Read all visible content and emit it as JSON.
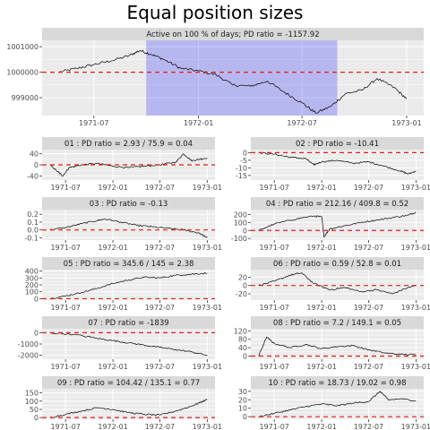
{
  "title": "Equal position sizes",
  "colors": {
    "panel_bg": "#ebebeb",
    "strip_bg": "#d9d9d9",
    "grid": "#ffffff",
    "line": "#000000",
    "reference": "#e41a1c",
    "highlight": "#0000ff"
  },
  "x_tick_labels": [
    "1971-07",
    "1972-01",
    "1972-07",
    "1973-01"
  ],
  "chart_data": [
    {
      "type": "line",
      "strip": "Active on 100 % of days; PD ratio =  -1157.92",
      "x_range": [
        "1971-04-01",
        "1973-01-31"
      ],
      "ylim": [
        998300,
        1001250
      ],
      "yticks": [
        999000,
        1000000,
        1001000
      ],
      "ytick_labels": [
        "999000",
        "1000000",
        "1001000"
      ],
      "reference_line": 1000000,
      "highlight": {
        "from": "1971-10-01",
        "to": "1972-09-01"
      },
      "series_points": [
        [
          "1971-05-01",
          1000000
        ],
        [
          "1971-06-01",
          1000150
        ],
        [
          "1971-07-01",
          1000300
        ],
        [
          "1971-08-01",
          1000450
        ],
        [
          "1971-09-01",
          1000650
        ],
        [
          "1971-09-20",
          1000850
        ],
        [
          "1971-10-10",
          1000700
        ],
        [
          "1971-11-01",
          1000500
        ],
        [
          "1971-12-01",
          1000150
        ],
        [
          "1972-01-01",
          1000050
        ],
        [
          "1972-02-01",
          999900
        ],
        [
          "1972-03-01",
          999500
        ],
        [
          "1972-04-01",
          999450
        ],
        [
          "1972-05-01",
          999650
        ],
        [
          "1972-06-01",
          999200
        ],
        [
          "1972-07-01",
          998800
        ],
        [
          "1972-07-25",
          998400
        ],
        [
          "1972-08-20",
          998650
        ],
        [
          "1972-09-15",
          999150
        ],
        [
          "1972-10-15",
          999300
        ],
        [
          "1972-11-10",
          999750
        ],
        [
          "1972-12-10",
          999400
        ],
        [
          "1973-01-01",
          998950
        ]
      ]
    },
    {
      "type": "line",
      "id": "01",
      "strip": "01 : PD ratio =  2.93 / 75.9 = 0.04",
      "ylim": [
        -55,
        55
      ],
      "yticks": [
        -40,
        0,
        40
      ],
      "ytick_labels": [
        "-40",
        "0",
        "40"
      ],
      "reference_line": 0,
      "series_points": [
        [
          "1971-05-01",
          0
        ],
        [
          "1971-06-01",
          -25
        ],
        [
          "1971-06-20",
          -40
        ],
        [
          "1971-07-15",
          -10
        ],
        [
          "1971-09-01",
          0
        ],
        [
          "1971-11-01",
          5
        ],
        [
          "1972-01-01",
          -5
        ],
        [
          "1972-03-01",
          -10
        ],
        [
          "1972-05-01",
          -5
        ],
        [
          "1972-07-01",
          0
        ],
        [
          "1972-09-01",
          10
        ],
        [
          "1972-10-01",
          40
        ],
        [
          "1972-11-01",
          15
        ],
        [
          "1972-12-01",
          20
        ],
        [
          "1973-01-01",
          25
        ]
      ]
    },
    {
      "type": "line",
      "id": "02",
      "strip": "02 : PD ratio =  -10.41",
      "ylim": [
        -18,
        2
      ],
      "yticks": [
        -15,
        -10,
        -5,
        0
      ],
      "ytick_labels": [
        "-15",
        "-10",
        "-5",
        "0"
      ],
      "reference_line": 0,
      "series_points": [
        [
          "1971-05-01",
          0
        ],
        [
          "1971-07-01",
          -1
        ],
        [
          "1971-09-01",
          -3
        ],
        [
          "1971-11-01",
          -4
        ],
        [
          "1971-12-01",
          -8
        ],
        [
          "1972-01-01",
          -6
        ],
        [
          "1972-03-01",
          -5
        ],
        [
          "1972-05-01",
          -7
        ],
        [
          "1972-07-01",
          -6
        ],
        [
          "1972-09-01",
          -9
        ],
        [
          "1972-11-01",
          -12
        ],
        [
          "1972-12-01",
          -14
        ],
        [
          "1973-01-01",
          -12
        ]
      ]
    },
    {
      "type": "line",
      "id": "03",
      "strip": "03 : PD ratio =  -0.13",
      "ylim": [
        -0.13,
        0.26
      ],
      "yticks": [
        -0.1,
        0.0,
        0.1,
        0.2
      ],
      "ytick_labels": [
        "-0.1",
        "0.0",
        "0.1",
        "0.2"
      ],
      "reference_line": 0,
      "series_points": [
        [
          "1971-05-01",
          0
        ],
        [
          "1971-07-01",
          0.03
        ],
        [
          "1971-09-01",
          0.08
        ],
        [
          "1971-11-01",
          0.12
        ],
        [
          "1971-12-01",
          0.14
        ],
        [
          "1972-02-01",
          0.1
        ],
        [
          "1972-04-01",
          0.06
        ],
        [
          "1972-06-01",
          0.04
        ],
        [
          "1972-08-01",
          0.02
        ],
        [
          "1972-10-01",
          0.0
        ],
        [
          "1972-12-01",
          -0.04
        ],
        [
          "1973-01-01",
          -0.1
        ]
      ]
    },
    {
      "type": "line",
      "id": "04",
      "strip": "04 : PD ratio =  212.16 / 409.8 = 0.52",
      "ylim": [
        -120,
        260
      ],
      "yticks": [
        -100,
        0,
        100,
        200
      ],
      "ytick_labels": [
        "-100",
        "0",
        "100",
        "200"
      ],
      "reference_line": 0,
      "series_points": [
        [
          "1971-05-01",
          0
        ],
        [
          "1971-07-01",
          80
        ],
        [
          "1971-10-01",
          150
        ],
        [
          "1971-12-01",
          180
        ],
        [
          "1972-01-01",
          170
        ],
        [
          "1972-01-10",
          -80
        ],
        [
          "1972-02-01",
          20
        ],
        [
          "1972-04-01",
          60
        ],
        [
          "1972-06-01",
          100
        ],
        [
          "1972-08-01",
          130
        ],
        [
          "1972-10-01",
          160
        ],
        [
          "1972-12-01",
          190
        ],
        [
          "1973-01-01",
          230
        ]
      ]
    },
    {
      "type": "line",
      "id": "05",
      "strip": "05 : PD ratio =  345.6 / 145 = 2.38",
      "ylim": [
        -20,
        420
      ],
      "yticks": [
        0,
        100,
        200,
        300,
        400
      ],
      "ytick_labels": [
        "0",
        "100",
        "200",
        "300",
        "400"
      ],
      "reference_line": 0,
      "series_points": [
        [
          "1971-05-01",
          0
        ],
        [
          "1971-07-01",
          40
        ],
        [
          "1971-09-01",
          90
        ],
        [
          "1971-11-01",
          150
        ],
        [
          "1972-01-01",
          220
        ],
        [
          "1972-03-01",
          270
        ],
        [
          "1972-05-01",
          310
        ],
        [
          "1972-07-01",
          300
        ],
        [
          "1972-09-01",
          340
        ],
        [
          "1972-11-01",
          355
        ],
        [
          "1973-01-01",
          370
        ]
      ]
    },
    {
      "type": "line",
      "id": "06",
      "strip": "06 : PD ratio =  0.59 / 52.8 = 0.01",
      "ylim": [
        -35,
        38
      ],
      "yticks": [
        -20,
        0,
        20
      ],
      "ytick_labels": [
        "-20",
        "0",
        "20"
      ],
      "reference_line": 0,
      "series_points": [
        [
          "1971-05-01",
          0
        ],
        [
          "1971-07-01",
          10
        ],
        [
          "1971-09-01",
          25
        ],
        [
          "1971-10-15",
          30
        ],
        [
          "1971-12-01",
          5
        ],
        [
          "1972-02-01",
          -10
        ],
        [
          "1972-04-01",
          -5
        ],
        [
          "1972-06-01",
          -15
        ],
        [
          "1972-08-01",
          -10
        ],
        [
          "1972-10-01",
          -20
        ],
        [
          "1972-12-01",
          -5
        ],
        [
          "1973-01-01",
          0
        ]
      ]
    },
    {
      "type": "line",
      "id": "07",
      "strip": "07 : PD ratio =  -1839",
      "ylim": [
        -2350,
        350
      ],
      "yticks": [
        -2000,
        -1000,
        0
      ],
      "ytick_labels": [
        "-2000",
        "-1000",
        "0"
      ],
      "reference_line": 0,
      "series_points": [
        [
          "1971-05-01",
          0
        ],
        [
          "1971-08-01",
          -150
        ],
        [
          "1971-11-01",
          -500
        ],
        [
          "1972-01-01",
          -700
        ],
        [
          "1972-03-01",
          -900
        ],
        [
          "1972-05-01",
          -1100
        ],
        [
          "1972-07-01",
          -1300
        ],
        [
          "1972-09-01",
          -1500
        ],
        [
          "1972-11-01",
          -1700
        ],
        [
          "1973-01-01",
          -2000
        ]
      ]
    },
    {
      "type": "line",
      "id": "08",
      "strip": "08 : PD ratio =  7.2 / 149.1 = 0.05",
      "ylim": [
        -15,
        130
      ],
      "yticks": [
        0,
        40,
        80,
        120
      ],
      "ytick_labels": [
        "0",
        "40",
        "80",
        "120"
      ],
      "reference_line": 0,
      "series_points": [
        [
          "1971-05-01",
          0
        ],
        [
          "1971-06-01",
          90
        ],
        [
          "1971-07-01",
          60
        ],
        [
          "1971-09-01",
          40
        ],
        [
          "1971-11-01",
          55
        ],
        [
          "1972-01-01",
          35
        ],
        [
          "1972-03-01",
          45
        ],
        [
          "1972-05-01",
          50
        ],
        [
          "1972-07-01",
          30
        ],
        [
          "1972-09-01",
          15
        ],
        [
          "1972-11-01",
          8
        ],
        [
          "1973-01-01",
          7
        ]
      ]
    },
    {
      "type": "line",
      "id": "09",
      "strip": "09 : PD ratio =  104.42 / 135.1 = 0.77",
      "ylim": [
        -10,
        175
      ],
      "yticks": [
        0,
        50,
        100,
        150
      ],
      "ytick_labels": [
        "0",
        "50",
        "100",
        "150"
      ],
      "reference_line": 0,
      "series_points": [
        [
          "1971-05-01",
          0
        ],
        [
          "1971-07-01",
          20
        ],
        [
          "1971-09-01",
          40
        ],
        [
          "1971-11-01",
          60
        ],
        [
          "1972-01-01",
          50
        ],
        [
          "1972-03-01",
          30
        ],
        [
          "1972-05-01",
          20
        ],
        [
          "1972-07-01",
          15
        ],
        [
          "1972-09-01",
          40
        ],
        [
          "1972-11-01",
          70
        ],
        [
          "1972-12-01",
          90
        ],
        [
          "1973-01-01",
          110
        ]
      ]
    },
    {
      "type": "line",
      "id": "10",
      "strip": "10 : PD ratio =  18.73 / 19.02 = 0.98",
      "ylim": [
        -3,
        33
      ],
      "yticks": [
        0,
        10,
        20,
        30
      ],
      "ytick_labels": [
        "0",
        "10",
        "20",
        "30"
      ],
      "reference_line": 0,
      "series_points": [
        [
          "1971-05-01",
          0
        ],
        [
          "1971-07-01",
          4
        ],
        [
          "1971-09-01",
          8
        ],
        [
          "1971-11-01",
          12
        ],
        [
          "1972-01-01",
          15
        ],
        [
          "1972-03-01",
          13
        ],
        [
          "1972-05-01",
          16
        ],
        [
          "1972-07-01",
          18
        ],
        [
          "1972-08-15",
          30
        ],
        [
          "1972-09-15",
          20
        ],
        [
          "1972-11-01",
          21
        ],
        [
          "1973-01-01",
          19
        ]
      ]
    }
  ]
}
